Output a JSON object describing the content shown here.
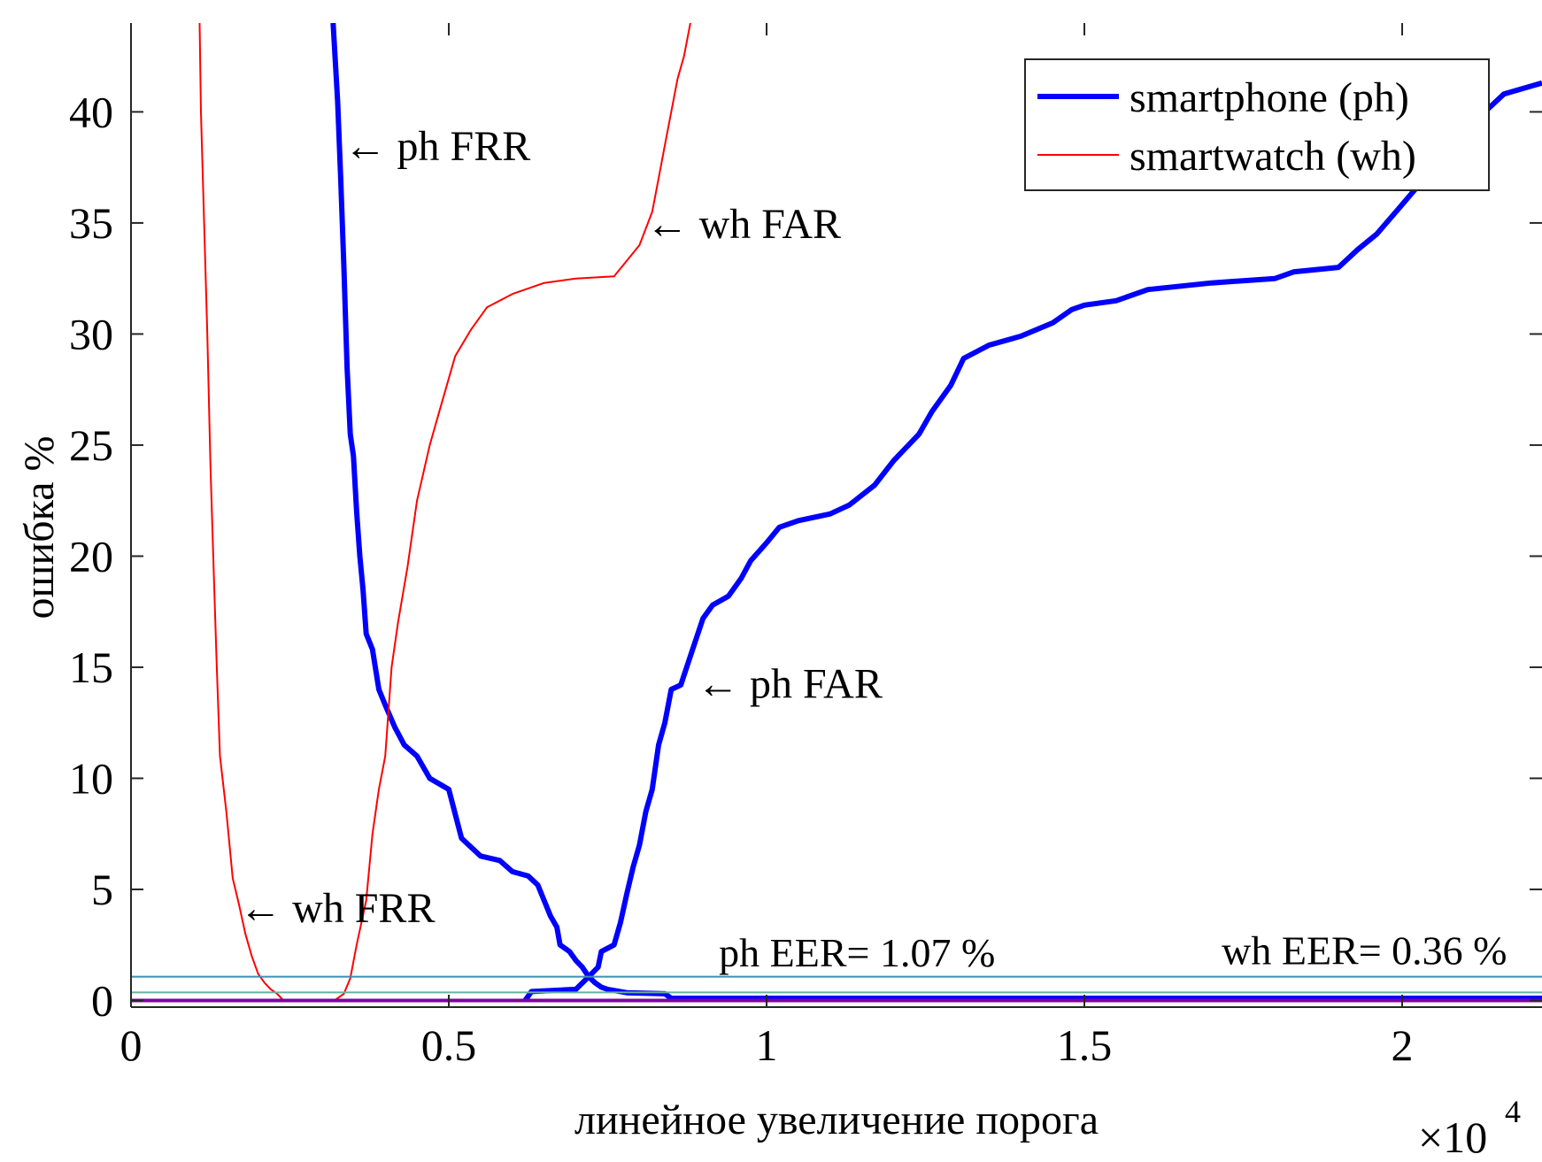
{
  "chart_data": {
    "type": "line",
    "title": "",
    "xlabel": "линейное увеличение порога",
    "ylabel": "ошибка %",
    "x_exponent_label": "×10",
    "x_exponent_power": "4",
    "x_scale_factor": 10000,
    "xlim": [
      0,
      2.22
    ],
    "ylim": [
      -0.3,
      44
    ],
    "x_ticks": [
      0,
      0.5,
      1,
      1.5,
      2
    ],
    "x_tick_labels": [
      "0",
      "0.5",
      "1",
      "1.5",
      "2"
    ],
    "y_ticks": [
      0,
      5,
      10,
      15,
      20,
      25,
      30,
      35,
      40
    ],
    "y_tick_labels": [
      "0",
      "5",
      "10",
      "15",
      "20",
      "25",
      "30",
      "35",
      "40"
    ],
    "grid": false,
    "legend_position": "top-right",
    "legend": [
      {
        "label": "smartphone (ph)",
        "color": "#0000ff",
        "width": "thick"
      },
      {
        "label": "smartwatch (wh)",
        "color": "#ff0000",
        "width": "thin"
      }
    ],
    "series": [
      {
        "name": "ph FRR",
        "color": "#0000ff",
        "width": "thick",
        "points": [
          [
            0.318,
            44
          ],
          [
            0.325,
            40.5
          ],
          [
            0.33,
            37
          ],
          [
            0.335,
            33
          ],
          [
            0.34,
            28.5
          ],
          [
            0.345,
            25.5
          ],
          [
            0.35,
            24.5
          ],
          [
            0.355,
            22
          ],
          [
            0.36,
            20
          ],
          [
            0.365,
            18.5
          ],
          [
            0.37,
            16.5
          ],
          [
            0.38,
            15.8
          ],
          [
            0.39,
            14
          ],
          [
            0.4,
            13.3
          ],
          [
            0.415,
            12.3
          ],
          [
            0.43,
            11.5
          ],
          [
            0.45,
            11
          ],
          [
            0.47,
            10
          ],
          [
            0.5,
            9.5
          ],
          [
            0.52,
            7.3
          ],
          [
            0.55,
            6.5
          ],
          [
            0.58,
            6.3
          ],
          [
            0.6,
            5.8
          ],
          [
            0.625,
            5.6
          ],
          [
            0.64,
            5.2
          ],
          [
            0.65,
            4.5
          ],
          [
            0.66,
            3.8
          ],
          [
            0.67,
            3.3
          ],
          [
            0.675,
            2.5
          ],
          [
            0.69,
            2.2
          ],
          [
            0.7,
            1.8
          ],
          [
            0.71,
            1.5
          ],
          [
            0.72,
            1.07
          ],
          [
            0.73,
            0.8
          ],
          [
            0.74,
            0.6
          ],
          [
            0.75,
            0.5
          ],
          [
            0.78,
            0.35
          ],
          [
            0.84,
            0.3
          ],
          [
            0.85,
            0.1
          ],
          [
            2.22,
            0.1
          ]
        ]
      },
      {
        "name": "ph FAR",
        "color": "#0000ff",
        "width": "thick",
        "points": [
          [
            0.62,
            0
          ],
          [
            0.63,
            0.4
          ],
          [
            0.7,
            0.5
          ],
          [
            0.72,
            1.07
          ],
          [
            0.735,
            1.5
          ],
          [
            0.74,
            2.2
          ],
          [
            0.76,
            2.5
          ],
          [
            0.77,
            3.5
          ],
          [
            0.78,
            4.8
          ],
          [
            0.79,
            6
          ],
          [
            0.8,
            7
          ],
          [
            0.81,
            8.5
          ],
          [
            0.82,
            9.5
          ],
          [
            0.83,
            11.5
          ],
          [
            0.84,
            12.5
          ],
          [
            0.85,
            14
          ],
          [
            0.865,
            14.2
          ],
          [
            0.88,
            15.5
          ],
          [
            0.9,
            17.2
          ],
          [
            0.915,
            17.8
          ],
          [
            0.94,
            18.2
          ],
          [
            0.96,
            19
          ],
          [
            0.975,
            19.8
          ],
          [
            1.0,
            20.6
          ],
          [
            1.02,
            21.3
          ],
          [
            1.05,
            21.6
          ],
          [
            1.1,
            21.9
          ],
          [
            1.13,
            22.3
          ],
          [
            1.17,
            23.2
          ],
          [
            1.2,
            24.3
          ],
          [
            1.24,
            25.5
          ],
          [
            1.26,
            26.5
          ],
          [
            1.29,
            27.7
          ],
          [
            1.31,
            28.9
          ],
          [
            1.35,
            29.5
          ],
          [
            1.4,
            29.9
          ],
          [
            1.45,
            30.5
          ],
          [
            1.48,
            31.1
          ],
          [
            1.5,
            31.3
          ],
          [
            1.55,
            31.5
          ],
          [
            1.6,
            32.0
          ],
          [
            1.7,
            32.3
          ],
          [
            1.8,
            32.5
          ],
          [
            1.83,
            32.8
          ],
          [
            1.9,
            33.0
          ],
          [
            1.93,
            33.8
          ],
          [
            1.96,
            34.5
          ],
          [
            1.99,
            35.5
          ],
          [
            2.02,
            36.5
          ],
          [
            2.04,
            38.5
          ],
          [
            2.07,
            39.2
          ],
          [
            2.1,
            39.5
          ],
          [
            2.13,
            40.0
          ],
          [
            2.16,
            40.8
          ],
          [
            2.22,
            41.3
          ]
        ]
      },
      {
        "name": "wh FRR",
        "color": "#ff0000",
        "width": "thin",
        "points": [
          [
            0.108,
            44
          ],
          [
            0.11,
            40
          ],
          [
            0.115,
            35
          ],
          [
            0.12,
            30
          ],
          [
            0.125,
            24
          ],
          [
            0.13,
            19.5
          ],
          [
            0.135,
            15
          ],
          [
            0.14,
            11
          ],
          [
            0.15,
            8.5
          ],
          [
            0.16,
            5.5
          ],
          [
            0.17,
            4.3
          ],
          [
            0.18,
            3.0
          ],
          [
            0.19,
            2.0
          ],
          [
            0.2,
            1.2
          ],
          [
            0.21,
            0.8
          ],
          [
            0.22,
            0.5
          ],
          [
            0.23,
            0.3
          ],
          [
            0.24,
            0
          ],
          [
            0.5,
            0
          ]
        ]
      },
      {
        "name": "wh FAR",
        "color": "#ff0000",
        "width": "thin",
        "points": [
          [
            0.32,
            0
          ],
          [
            0.335,
            0.3
          ],
          [
            0.345,
            1.0
          ],
          [
            0.355,
            2.5
          ],
          [
            0.37,
            4.5
          ],
          [
            0.38,
            7.5
          ],
          [
            0.39,
            9.5
          ],
          [
            0.4,
            11
          ],
          [
            0.41,
            15
          ],
          [
            0.42,
            17
          ],
          [
            0.435,
            19.5
          ],
          [
            0.45,
            22.5
          ],
          [
            0.47,
            25
          ],
          [
            0.49,
            27
          ],
          [
            0.51,
            29
          ],
          [
            0.535,
            30.2
          ],
          [
            0.56,
            31.2
          ],
          [
            0.6,
            31.8
          ],
          [
            0.65,
            32.3
          ],
          [
            0.7,
            32.5
          ],
          [
            0.76,
            32.6
          ],
          [
            0.78,
            33.3
          ],
          [
            0.8,
            34
          ],
          [
            0.82,
            35.5
          ],
          [
            0.83,
            37
          ],
          [
            0.84,
            38.5
          ],
          [
            0.85,
            40
          ],
          [
            0.86,
            41.5
          ],
          [
            0.87,
            42.5
          ],
          [
            0.88,
            44
          ]
        ]
      },
      {
        "name": "ph EER",
        "color": "#3c8fb4",
        "width": "thin",
        "points": [
          [
            0,
            1.07
          ],
          [
            2.22,
            1.07
          ]
        ]
      },
      {
        "name": "wh EER",
        "color": "#6ab0a0",
        "width": "thin",
        "points": [
          [
            0,
            0.36
          ],
          [
            2.22,
            0.36
          ]
        ]
      },
      {
        "name": "baseline",
        "color": "#8000a0",
        "width": "medium",
        "points": [
          [
            0,
            0
          ],
          [
            2.22,
            0
          ]
        ]
      }
    ],
    "annotations": [
      {
        "text": "← ph FRR",
        "x": 0.335,
        "y": 38.5
      },
      {
        "text": "← wh FAR",
        "x": 0.81,
        "y": 35
      },
      {
        "text": "← ph FAR",
        "x": 0.89,
        "y": 14.3
      },
      {
        "text": "← wh FRR",
        "x": 0.17,
        "y": 4.2
      },
      {
        "text": "ph EER= 1.07 %",
        "x": 0.925,
        "y": 2.2
      },
      {
        "text": "wh EER= 0.36 %",
        "x": 2.165,
        "y": 2.3
      }
    ]
  }
}
